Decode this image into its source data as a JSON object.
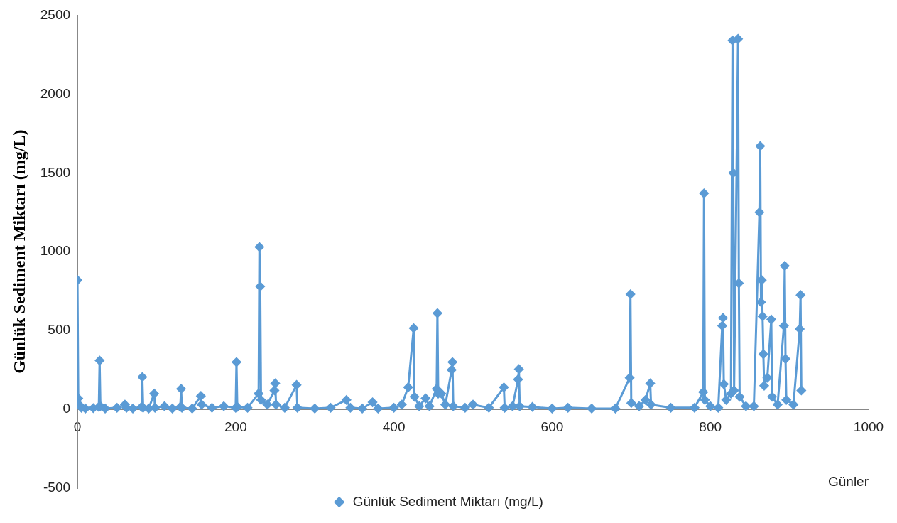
{
  "chart_data": {
    "type": "line",
    "xlabel": "Günler",
    "ylabel": "Günlük Sediment Miktarı (mg/L)",
    "xlim": [
      0,
      1000
    ],
    "xticks": [
      0,
      200,
      400,
      600,
      800,
      1000
    ],
    "ylim": [
      -500,
      2500
    ],
    "yticks": [
      -500,
      0,
      500,
      1000,
      1500,
      2000,
      2500
    ],
    "grid": false,
    "legend": "bottom",
    "marker": "diamond",
    "line_style": "solid",
    "series": [
      {
        "name": "Günlük Sediment Miktarı (mg/L)",
        "color": "#5b9bd5",
        "x": [
          0,
          1,
          2,
          5,
          10,
          20,
          27,
          28,
          29,
          35,
          50,
          60,
          62,
          70,
          81,
          82,
          83,
          90,
          97,
          98,
          110,
          120,
          130,
          131,
          132,
          145,
          156,
          157,
          170,
          185,
          200,
          201,
          202,
          215,
          229,
          230,
          231,
          232,
          240,
          249,
          250,
          251,
          262,
          277,
          278,
          300,
          320,
          340,
          345,
          360,
          373,
          380,
          400,
          410,
          418,
          425,
          426,
          432,
          440,
          445,
          454,
          455,
          456,
          460,
          465,
          473,
          474,
          475,
          490,
          500,
          520,
          539,
          540,
          550,
          557,
          558,
          559,
          575,
          600,
          620,
          650,
          680,
          698,
          699,
          700,
          710,
          718,
          724,
          725,
          750,
          780,
          791,
          792,
          793,
          800,
          810,
          815,
          816,
          817,
          820,
          826,
          828,
          829,
          830,
          835,
          836,
          837,
          845,
          855,
          862,
          863,
          864,
          865,
          866,
          867,
          868,
          872,
          877,
          878,
          885,
          893,
          894,
          895,
          896,
          905,
          913,
          914,
          915
        ],
        "values": [
          820,
          70,
          30,
          10,
          5,
          8,
          15,
          310,
          20,
          5,
          10,
          30,
          10,
          5,
          15,
          205,
          10,
          5,
          100,
          10,
          20,
          5,
          15,
          130,
          10,
          5,
          85,
          30,
          10,
          20,
          10,
          300,
          15,
          10,
          100,
          1030,
          780,
          60,
          30,
          120,
          165,
          30,
          10,
          155,
          10,
          5,
          10,
          60,
          10,
          5,
          45,
          5,
          10,
          30,
          140,
          515,
          80,
          20,
          70,
          20,
          130,
          610,
          100,
          100,
          30,
          250,
          300,
          20,
          10,
          30,
          10,
          140,
          10,
          20,
          190,
          255,
          20,
          15,
          5,
          10,
          5,
          5,
          200,
          730,
          40,
          20,
          60,
          165,
          30,
          10,
          10,
          110,
          1370,
          60,
          20,
          10,
          530,
          580,
          160,
          60,
          100,
          2340,
          1500,
          120,
          2350,
          800,
          80,
          20,
          20,
          1250,
          1670,
          680,
          820,
          590,
          350,
          150,
          200,
          570,
          80,
          30,
          530,
          910,
          320,
          60,
          30,
          510,
          725,
          120
        ]
      }
    ]
  }
}
